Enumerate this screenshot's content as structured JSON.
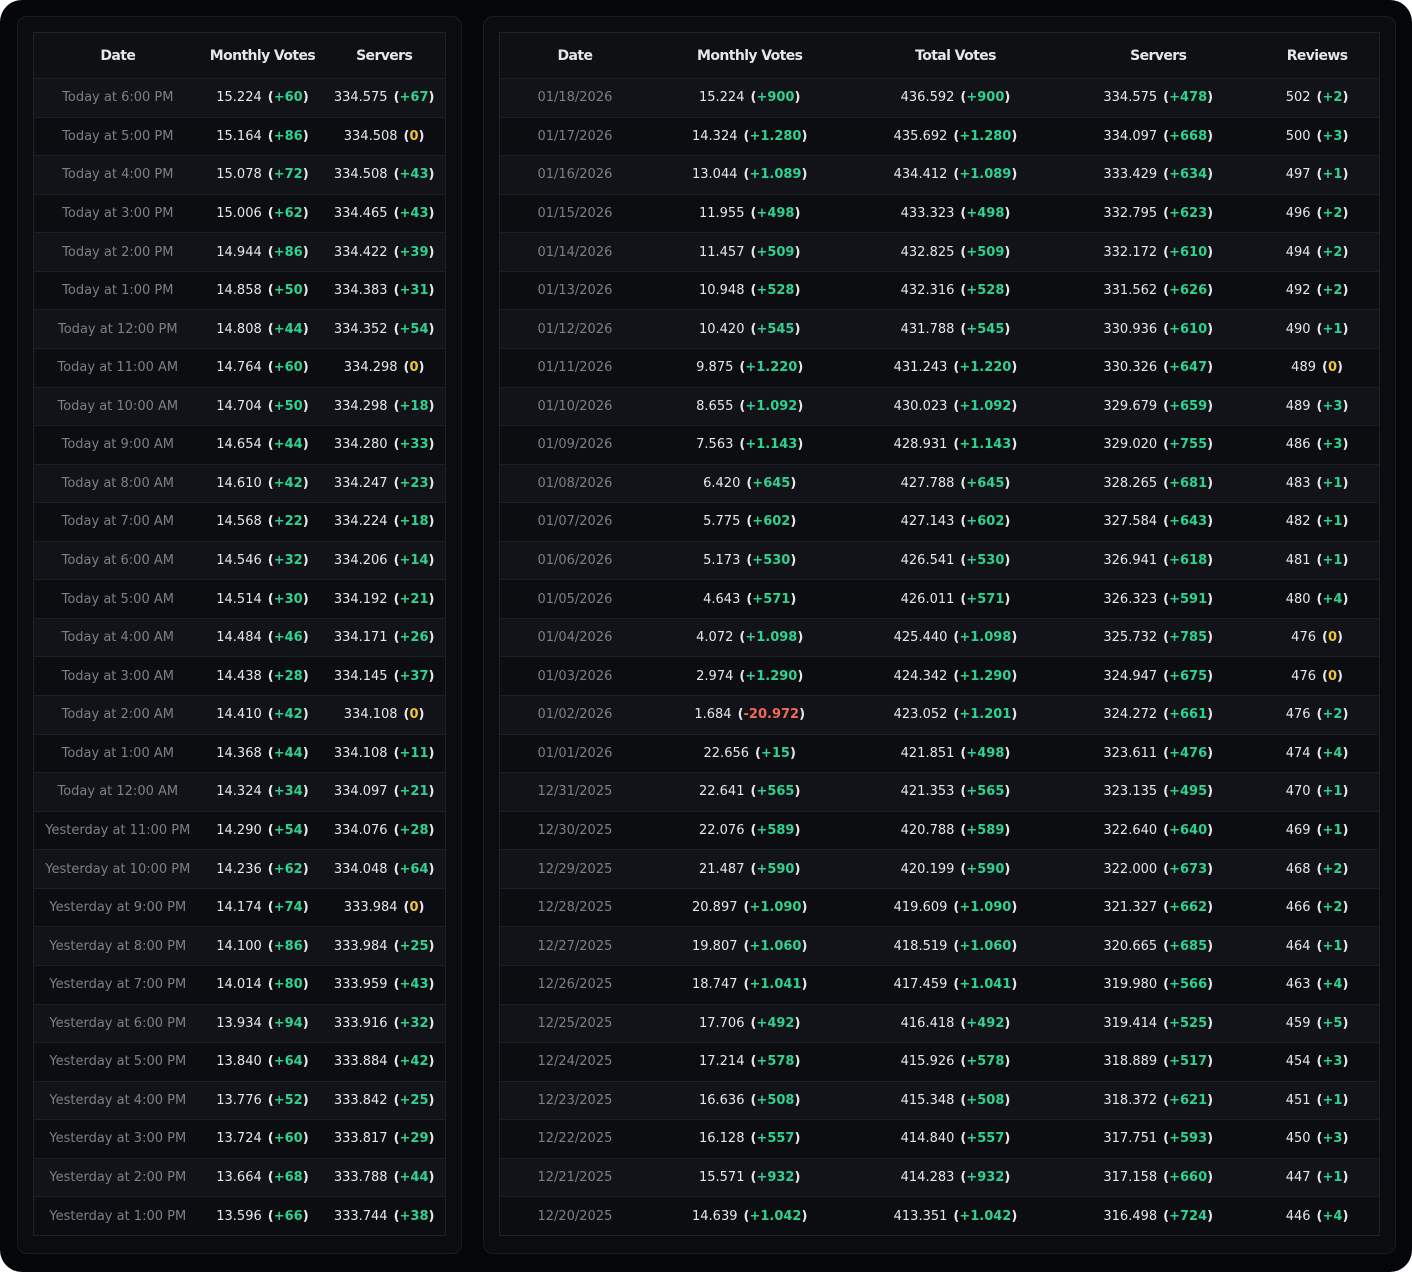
{
  "left_table": {
    "headers": [
      "Date",
      "Monthly Votes",
      "Servers"
    ],
    "rows": [
      [
        "Today at 6:00 PM",
        "15.224",
        "(+60)",
        "334.575",
        "(+67)"
      ],
      [
        "Today at 5:00 PM",
        "15.164",
        "(+86)",
        "334.508",
        "(0)"
      ],
      [
        "Today at 4:00 PM",
        "15.078",
        "(+72)",
        "334.508",
        "(+43)"
      ],
      [
        "Today at 3:00 PM",
        "15.006",
        "(+62)",
        "334.465",
        "(+43)"
      ],
      [
        "Today at 2:00 PM",
        "14.944",
        "(+86)",
        "334.422",
        "(+39)"
      ],
      [
        "Today at 1:00 PM",
        "14.858",
        "(+50)",
        "334.383",
        "(+31)"
      ],
      [
        "Today at 12:00 PM",
        "14.808",
        "(+44)",
        "334.352",
        "(+54)"
      ],
      [
        "Today at 11:00 AM",
        "14.764",
        "(+60)",
        "334.298",
        "(0)"
      ],
      [
        "Today at 10:00 AM",
        "14.704",
        "(+50)",
        "334.298",
        "(+18)"
      ],
      [
        "Today at 9:00 AM",
        "14.654",
        "(+44)",
        "334.280",
        "(+33)"
      ],
      [
        "Today at 8:00 AM",
        "14.610",
        "(+42)",
        "334.247",
        "(+23)"
      ],
      [
        "Today at 7:00 AM",
        "14.568",
        "(+22)",
        "334.224",
        "(+18)"
      ],
      [
        "Today at 6:00 AM",
        "14.546",
        "(+32)",
        "334.206",
        "(+14)"
      ],
      [
        "Today at 5:00 AM",
        "14.514",
        "(+30)",
        "334.192",
        "(+21)"
      ],
      [
        "Today at 4:00 AM",
        "14.484",
        "(+46)",
        "334.171",
        "(+26)"
      ],
      [
        "Today at 3:00 AM",
        "14.438",
        "(+28)",
        "334.145",
        "(+37)"
      ],
      [
        "Today at 2:00 AM",
        "14.410",
        "(+42)",
        "334.108",
        "(0)"
      ],
      [
        "Today at 1:00 AM",
        "14.368",
        "(+44)",
        "334.108",
        "(+11)"
      ],
      [
        "Today at 12:00 AM",
        "14.324",
        "(+34)",
        "334.097",
        "(+21)"
      ],
      [
        "Yesterday at 11:00 PM",
        "14.290",
        "(+54)",
        "334.076",
        "(+28)"
      ],
      [
        "Yesterday at 10:00 PM",
        "14.236",
        "(+62)",
        "334.048",
        "(+64)"
      ],
      [
        "Yesterday at 9:00 PM",
        "14.174",
        "(+74)",
        "333.984",
        "(0)"
      ],
      [
        "Yesterday at 8:00 PM",
        "14.100",
        "(+86)",
        "333.984",
        "(+25)"
      ],
      [
        "Yesterday at 7:00 PM",
        "14.014",
        "(+80)",
        "333.959",
        "(+43)"
      ],
      [
        "Yesterday at 6:00 PM",
        "13.934",
        "(+94)",
        "333.916",
        "(+32)"
      ],
      [
        "Yesterday at 5:00 PM",
        "13.840",
        "(+64)",
        "333.884",
        "(+42)"
      ],
      [
        "Yesterday at 4:00 PM",
        "13.776",
        "(+52)",
        "333.842",
        "(+25)"
      ],
      [
        "Yesterday at 3:00 PM",
        "13.724",
        "(+60)",
        "333.817",
        "(+29)"
      ],
      [
        "Yesterday at 2:00 PM",
        "13.664",
        "(+68)",
        "333.788",
        "(+44)"
      ],
      [
        "Yesterday at 1:00 PM",
        "13.596",
        "(+66)",
        "333.744",
        "(+38)"
      ]
    ]
  },
  "right_table": {
    "headers": [
      "Date",
      "Monthly Votes",
      "Total Votes",
      "Servers",
      "Reviews"
    ],
    "rows": [
      [
        "01/18/2026",
        "15.224",
        "(+900)",
        "436.592",
        "(+900)",
        "334.575",
        "(+478)",
        "502",
        "(+2)"
      ],
      [
        "01/17/2026",
        "14.324",
        "(+1.280)",
        "435.692",
        "(+1.280)",
        "334.097",
        "(+668)",
        "500",
        "(+3)"
      ],
      [
        "01/16/2026",
        "13.044",
        "(+1.089)",
        "434.412",
        "(+1.089)",
        "333.429",
        "(+634)",
        "497",
        "(+1)"
      ],
      [
        "01/15/2026",
        "11.955",
        "(+498)",
        "433.323",
        "(+498)",
        "332.795",
        "(+623)",
        "496",
        "(+2)"
      ],
      [
        "01/14/2026",
        "11.457",
        "(+509)",
        "432.825",
        "(+509)",
        "332.172",
        "(+610)",
        "494",
        "(+2)"
      ],
      [
        "01/13/2026",
        "10.948",
        "(+528)",
        "432.316",
        "(+528)",
        "331.562",
        "(+626)",
        "492",
        "(+2)"
      ],
      [
        "01/12/2026",
        "10.420",
        "(+545)",
        "431.788",
        "(+545)",
        "330.936",
        "(+610)",
        "490",
        "(+1)"
      ],
      [
        "01/11/2026",
        "9.875",
        "(+1.220)",
        "431.243",
        "(+1.220)",
        "330.326",
        "(+647)",
        "489",
        "(0)"
      ],
      [
        "01/10/2026",
        "8.655",
        "(+1.092)",
        "430.023",
        "(+1.092)",
        "329.679",
        "(+659)",
        "489",
        "(+3)"
      ],
      [
        "01/09/2026",
        "7.563",
        "(+1.143)",
        "428.931",
        "(+1.143)",
        "329.020",
        "(+755)",
        "486",
        "(+3)"
      ],
      [
        "01/08/2026",
        "6.420",
        "(+645)",
        "427.788",
        "(+645)",
        "328.265",
        "(+681)",
        "483",
        "(+1)"
      ],
      [
        "01/07/2026",
        "5.775",
        "(+602)",
        "427.143",
        "(+602)",
        "327.584",
        "(+643)",
        "482",
        "(+1)"
      ],
      [
        "01/06/2026",
        "5.173",
        "(+530)",
        "426.541",
        "(+530)",
        "326.941",
        "(+618)",
        "481",
        "(+1)"
      ],
      [
        "01/05/2026",
        "4.643",
        "(+571)",
        "426.011",
        "(+571)",
        "326.323",
        "(+591)",
        "480",
        "(+4)"
      ],
      [
        "01/04/2026",
        "4.072",
        "(+1.098)",
        "425.440",
        "(+1.098)",
        "325.732",
        "(+785)",
        "476",
        "(0)"
      ],
      [
        "01/03/2026",
        "2.974",
        "(+1.290)",
        "424.342",
        "(+1.290)",
        "324.947",
        "(+675)",
        "476",
        "(0)"
      ],
      [
        "01/02/2026",
        "1.684",
        "(-20.972)",
        "423.052",
        "(+1.201)",
        "324.272",
        "(+661)",
        "476",
        "(+2)"
      ],
      [
        "01/01/2026",
        "22.656",
        "(+15)",
        "421.851",
        "(+498)",
        "323.611",
        "(+476)",
        "474",
        "(+4)"
      ],
      [
        "12/31/2025",
        "22.641",
        "(+565)",
        "421.353",
        "(+565)",
        "323.135",
        "(+495)",
        "470",
        "(+1)"
      ],
      [
        "12/30/2025",
        "22.076",
        "(+589)",
        "420.788",
        "(+589)",
        "322.640",
        "(+640)",
        "469",
        "(+1)"
      ],
      [
        "12/29/2025",
        "21.487",
        "(+590)",
        "420.199",
        "(+590)",
        "322.000",
        "(+673)",
        "468",
        "(+2)"
      ],
      [
        "12/28/2025",
        "20.897",
        "(+1.090)",
        "419.609",
        "(+1.090)",
        "321.327",
        "(+662)",
        "466",
        "(+2)"
      ],
      [
        "12/27/2025",
        "19.807",
        "(+1.060)",
        "418.519",
        "(+1.060)",
        "320.665",
        "(+685)",
        "464",
        "(+1)"
      ],
      [
        "12/26/2025",
        "18.747",
        "(+1.041)",
        "417.459",
        "(+1.041)",
        "319.980",
        "(+566)",
        "463",
        "(+4)"
      ],
      [
        "12/25/2025",
        "17.706",
        "(+492)",
        "416.418",
        "(+492)",
        "319.414",
        "(+525)",
        "459",
        "(+5)"
      ],
      [
        "12/24/2025",
        "17.214",
        "(+578)",
        "415.926",
        "(+578)",
        "318.889",
        "(+517)",
        "454",
        "(+3)"
      ],
      [
        "12/23/2025",
        "16.636",
        "(+508)",
        "415.348",
        "(+508)",
        "318.372",
        "(+621)",
        "451",
        "(+1)"
      ],
      [
        "12/22/2025",
        "16.128",
        "(+557)",
        "414.840",
        "(+557)",
        "317.751",
        "(+593)",
        "450",
        "(+3)"
      ],
      [
        "12/21/2025",
        "15.571",
        "(+932)",
        "414.283",
        "(+932)",
        "317.158",
        "(+660)",
        "447",
        "(+1)"
      ],
      [
        "12/20/2025",
        "14.639",
        "(+1.042)",
        "413.351",
        "(+1.042)",
        "316.498",
        "(+724)",
        "446",
        "(+4)"
      ]
    ]
  }
}
